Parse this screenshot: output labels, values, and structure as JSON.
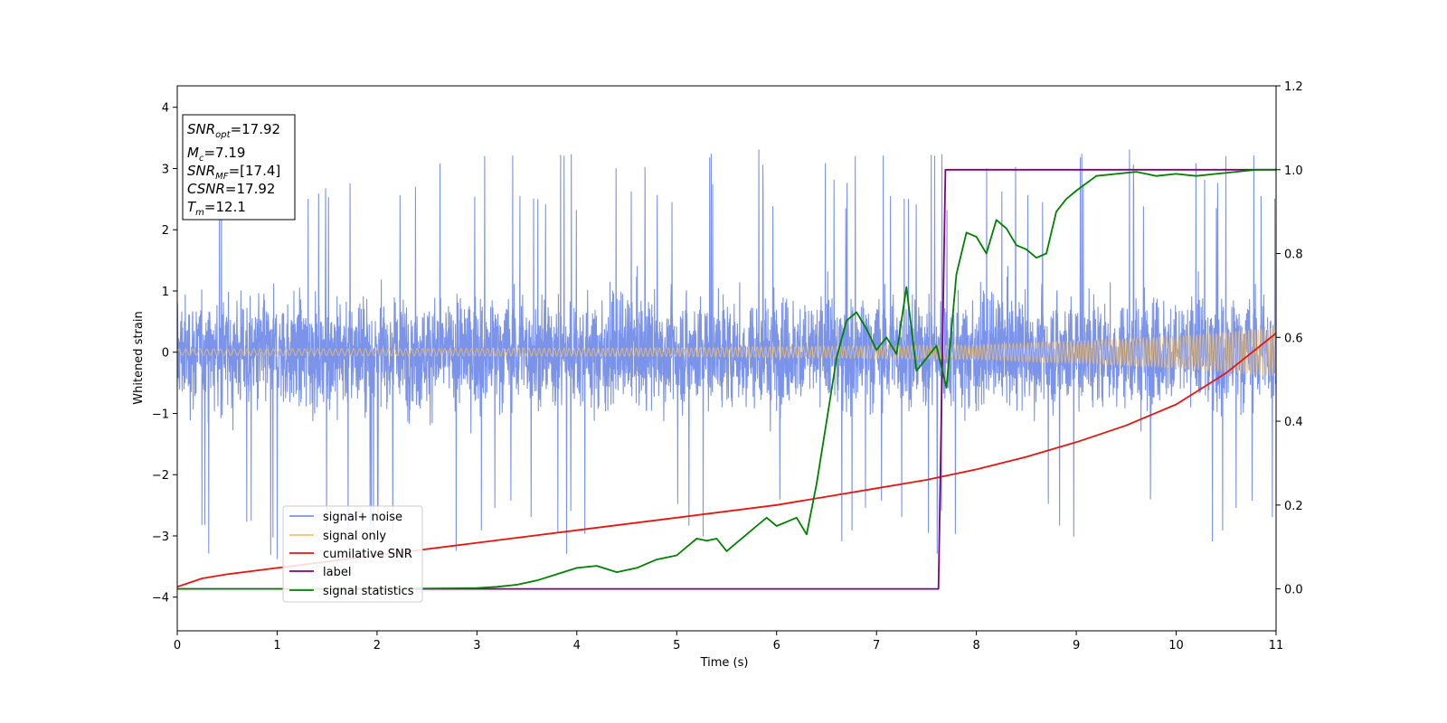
{
  "chart_data": {
    "type": "line",
    "xlabel": "Time (s)",
    "ylabel": "Whitened strain",
    "xlim": [
      0,
      11
    ],
    "ylim_left": [
      -4.55,
      4.35
    ],
    "ylim_right": [
      -0.1,
      1.2
    ],
    "x_ticks": [
      0,
      1,
      2,
      3,
      4,
      5,
      6,
      7,
      8,
      9,
      10,
      11
    ],
    "y_ticks_left": [
      -4,
      -3,
      -2,
      -1,
      0,
      1,
      2,
      3,
      4
    ],
    "y_ticks_right": [
      0.0,
      0.2,
      0.4,
      0.6,
      0.8,
      1.0,
      1.2
    ],
    "grid": false,
    "legend_position": "lower-left",
    "infobox": {
      "snr_opt": {
        "label": "SNR",
        "sub": "opt",
        "value": "=17.92"
      },
      "mc": {
        "label": "M",
        "sub": "c",
        "value": "=7.19"
      },
      "snr_mf": {
        "label": "SNR",
        "sub": "MF",
        "value": "=[17.4]"
      },
      "csnr": {
        "label": "CSNR",
        "value": "=17.92"
      },
      "tm": {
        "label": "T",
        "sub": "m",
        "value": "=12.1"
      }
    },
    "series": [
      {
        "name": "signal+ noise",
        "axis": "left",
        "color": "#7b93e8",
        "description": "noise band roughly ±1.7 with spikes up to ±4",
        "band_typical": 1.7,
        "peak_max": 3.97,
        "peak_min": -3.6
      },
      {
        "name": "signal only",
        "axis": "left",
        "color": "#f5c26b",
        "envelope": {
          "x": [
            0,
            5,
            8,
            9,
            10,
            11
          ],
          "y": [
            0.05,
            0.07,
            0.12,
            0.18,
            0.26,
            0.4
          ]
        }
      },
      {
        "name": "cumilative SNR",
        "axis": "right",
        "color": "#e8150e",
        "x": [
          0,
          0.25,
          0.5,
          1,
          2,
          3,
          4,
          5,
          6,
          7,
          7.5,
          8,
          8.5,
          9,
          9.5,
          10,
          10.5,
          11
        ],
        "y": [
          0.005,
          0.025,
          0.035,
          0.05,
          0.08,
          0.11,
          0.14,
          0.17,
          0.2,
          0.24,
          0.26,
          0.285,
          0.315,
          0.35,
          0.39,
          0.44,
          0.515,
          0.61
        ]
      },
      {
        "name": "label",
        "axis": "right",
        "color": "#800080",
        "x": [
          0,
          7.62,
          7.69,
          11
        ],
        "y": [
          0,
          0,
          1,
          1
        ]
      },
      {
        "name": "signal statistics",
        "axis": "right",
        "color": "#008000",
        "x": [
          0,
          2,
          3,
          3.2,
          3.4,
          3.6,
          3.8,
          4.0,
          4.2,
          4.4,
          4.6,
          4.8,
          5.0,
          5.1,
          5.2,
          5.3,
          5.4,
          5.5,
          5.6,
          5.7,
          5.8,
          5.9,
          6.0,
          6.1,
          6.2,
          6.3,
          6.4,
          6.5,
          6.6,
          6.7,
          6.8,
          6.9,
          7.0,
          7.1,
          7.2,
          7.3,
          7.4,
          7.5,
          7.6,
          7.7,
          7.8,
          7.9,
          8.0,
          8.1,
          8.2,
          8.3,
          8.4,
          8.5,
          8.6,
          8.7,
          8.8,
          8.9,
          9.0,
          9.2,
          9.4,
          9.6,
          9.8,
          10.0,
          10.2,
          10.4,
          10.6,
          10.8,
          11
        ],
        "y": [
          0,
          0,
          0.002,
          0.005,
          0.01,
          0.02,
          0.035,
          0.05,
          0.055,
          0.04,
          0.05,
          0.07,
          0.08,
          0.1,
          0.12,
          0.115,
          0.12,
          0.09,
          0.11,
          0.13,
          0.15,
          0.17,
          0.15,
          0.16,
          0.17,
          0.13,
          0.25,
          0.4,
          0.55,
          0.64,
          0.66,
          0.62,
          0.57,
          0.6,
          0.56,
          0.72,
          0.52,
          0.55,
          0.58,
          0.48,
          0.75,
          0.85,
          0.84,
          0.8,
          0.88,
          0.86,
          0.82,
          0.81,
          0.79,
          0.8,
          0.9,
          0.93,
          0.95,
          0.985,
          0.99,
          0.995,
          0.985,
          0.99,
          0.985,
          0.99,
          0.995,
          1.0,
          1.0
        ]
      }
    ]
  }
}
